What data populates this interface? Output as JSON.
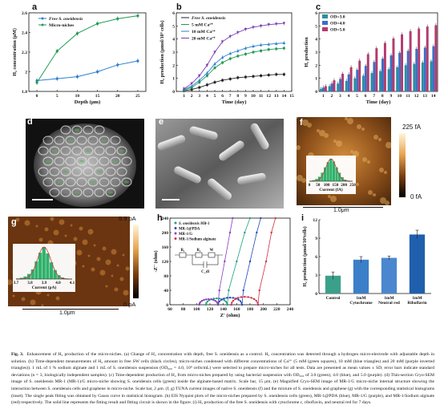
{
  "panel_letters": [
    "a",
    "b",
    "c",
    "d",
    "e",
    "f",
    "g",
    "h",
    "i"
  ],
  "panel_a": {
    "chart_data": {
      "type": "line",
      "xlabel": "Depth (μm)",
      "ylabel": "H₂ concentration (μM)",
      "xlim": [
        -2,
        27
      ],
      "ylim": [
        1.8,
        2.6
      ],
      "xticks": [
        0,
        5,
        10,
        15,
        20,
        25
      ],
      "yticks": [
        1.8,
        2.0,
        2.2,
        2.4,
        2.6
      ],
      "x": [
        0,
        5,
        10,
        15,
        20,
        25
      ],
      "series": [
        {
          "name": "Free S. oneidensis",
          "color": "#2b7fd1",
          "values": [
            1.91,
            1.93,
            1.95,
            2.0,
            2.07,
            2.11
          ]
        },
        {
          "name": "Micro-niches",
          "color": "#1f9a55",
          "values": [
            1.89,
            2.21,
            2.39,
            2.49,
            2.54,
            2.57
          ]
        }
      ]
    }
  },
  "panel_b": {
    "chart_data": {
      "type": "line",
      "xlabel": "Time (day)",
      "ylabel": "H₂ production (μmol/10⁹ cells)",
      "xlim": [
        0,
        15
      ],
      "ylim": [
        0,
        6
      ],
      "xticks": [
        1,
        2,
        3,
        4,
        5,
        6,
        7,
        8,
        9,
        10,
        11,
        12,
        13,
        14,
        15
      ],
      "yticks": [
        0,
        1,
        2,
        3,
        4,
        5,
        6
      ],
      "x": [
        1,
        2,
        3,
        4,
        5,
        6,
        7,
        8,
        9,
        10,
        11,
        12,
        13,
        14
      ],
      "series": [
        {
          "name": "Free S. oneidensis",
          "color": "#222222",
          "marker": "square",
          "values": [
            0.05,
            0.15,
            0.3,
            0.5,
            0.7,
            0.85,
            0.95,
            1.05,
            1.1,
            1.15,
            1.2,
            1.25,
            1.3,
            1.3
          ]
        },
        {
          "name": "5 mM Ca²⁺",
          "color": "#1f9a55",
          "marker": "square",
          "values": [
            0.1,
            0.3,
            0.7,
            1.2,
            1.8,
            2.2,
            2.5,
            2.7,
            2.85,
            3.0,
            3.1,
            3.2,
            3.25,
            3.3
          ]
        },
        {
          "name": "10 mM Ca²⁺",
          "color": "#2b7fd1",
          "marker": "triangle",
          "values": [
            0.15,
            0.4,
            0.85,
            1.4,
            2.1,
            2.6,
            2.9,
            3.1,
            3.3,
            3.45,
            3.55,
            3.6,
            3.65,
            3.7
          ]
        },
        {
          "name": "20 mM Ca²⁺",
          "color": "#7a3fb0",
          "marker": "triangle-down",
          "values": [
            0.2,
            0.6,
            1.2,
            2.0,
            3.0,
            3.8,
            4.2,
            4.5,
            4.75,
            4.9,
            5.0,
            5.1,
            5.15,
            5.2
          ]
        }
      ]
    }
  },
  "panel_c": {
    "chart_data": {
      "type": "bar",
      "xlabel": "Time (day)",
      "ylabel": "H₂ production",
      "categories": [
        "1",
        "2",
        "3",
        "4",
        "5",
        "6",
        "7",
        "8",
        "9",
        "10",
        "11",
        "12",
        "13",
        "14"
      ],
      "ylim": [
        0,
        6
      ],
      "yticks": [
        0,
        1,
        2,
        3,
        4,
        5,
        6
      ],
      "series": [
        {
          "name": "OD=3.0",
          "color": "#2a8fa0",
          "values": [
            0.2,
            0.4,
            0.6,
            0.8,
            1.0,
            1.2,
            1.4,
            1.55,
            1.7,
            1.85,
            2.0,
            2.1,
            2.2,
            2.3
          ]
        },
        {
          "name": "OD=4.0",
          "color": "#3b6fc6",
          "values": [
            0.3,
            0.6,
            0.95,
            1.3,
            1.65,
            1.95,
            2.25,
            2.5,
            2.75,
            2.95,
            3.1,
            3.25,
            3.35,
            3.45
          ]
        },
        {
          "name": "OD=5.0",
          "color": "#b33a6e",
          "values": [
            0.4,
            0.85,
            1.35,
            1.85,
            2.35,
            2.85,
            3.3,
            3.7,
            4.05,
            4.35,
            4.6,
            4.8,
            4.95,
            5.05
          ]
        }
      ]
    }
  },
  "panel_d": {
    "scale_label": ""
  },
  "panel_e": {
    "scale_label": ""
  },
  "panel_f": {
    "colorbar_top": "225 fA",
    "colorbar_bottom": "0 fA",
    "scale": "1.0μm",
    "hist_xlabel": "Current (fA)",
    "hist_ticks": [
      "0",
      "50",
      "100",
      "150",
      "200",
      "250"
    ]
  },
  "panel_g": {
    "colorbar_top": "9.9 pA",
    "colorbar_bottom": "0 pA",
    "scale": "1.0μm",
    "hist_xlabel": "Current (pA)",
    "hist_ticks": [
      "3.7",
      "3.8",
      "3.9",
      "4.0",
      "4.1"
    ]
  },
  "panel_h": {
    "chart_data": {
      "type": "scatter",
      "xlabel": "Z' (ohm)",
      "ylabel": "-Z'' (ohm)",
      "xlim": [
        60,
        240
      ],
      "ylim": [
        0,
        240
      ],
      "xticks": [
        60,
        80,
        100,
        120,
        140,
        160,
        180,
        200,
        220,
        240
      ],
      "yticks": [
        0,
        40,
        80,
        120,
        160,
        200,
        240
      ],
      "series": [
        {
          "name": "S. oneidensis MR-1",
          "color": "#1fa37a"
        },
        {
          "name": "MR-1@PDA",
          "color": "#2a49b8"
        },
        {
          "name": "MR-1/G",
          "color": "#8c3fc0"
        },
        {
          "name": "MR-1/Sodium alginate",
          "color": "#d2334a"
        }
      ],
      "circuit_labels": [
        "R₁",
        "R₂",
        "W",
        "C_dl"
      ]
    }
  },
  "panel_i": {
    "chart_data": {
      "type": "bar",
      "ylabel": "H₂ production (μmol/10⁹cells)",
      "ylim": [
        0,
        12
      ],
      "yticks": [
        0,
        3,
        6,
        9,
        12
      ],
      "categories": [
        "Control",
        "1mM Cytochrome",
        "1mM Neutral red",
        "1mM Riboflavin"
      ],
      "values": [
        2.9,
        5.5,
        5.8,
        9.6
      ],
      "errors": [
        0.6,
        0.5,
        0.3,
        0.7
      ],
      "colors": [
        "#3aa08a",
        "#3b7fc8",
        "#4a87cf",
        "#1f5fae"
      ]
    }
  },
  "caption": {
    "label": "Fig. 3.",
    "text": "Enhancement of H₂ production of the micro-niches. (a) Change of H₂ concentration with depth, free S. oneidensis as a control. H₂ concentration was detected through a hydrogen micro-electrode with adjustable depth in solution. (b) Time-dependent measurements of H₂ amount in free SW cells (black circles), micro-niches condensed with different concentrations of Ca²⁺ (5 mM (green squares), 10 mM (blue triangles) and 20 mM (purple inverted triangles)). 1 mL of 1 % sodium alginate and 1 mL of S. oneidensis suspension (OD₆₀₀ = 4.0, 10⁹ cells/mL) were selected to prepare micro-niches for all tests. Data are presented as mean values ± SD, error bars indicate standard deviations (n = 3, biologically independent samples). (c) Time-dependent production of H₂ from micro-niches prepared by using bacterial suspension with OD₆₀₀ of 3.0 (green), 4.0 (blue), and 5.0 (purple). (d) Thin-section Cryo-SEM image of S. oneidensis MR-1 (MR-1)/G micro-niche showing S. oneidensis cells (green) inside the alginate-based matrix. Scale bar, 15 μm. (e) Magnified Cryo-SEM image of MR-1/G micro-niche internal structure showing the interaction between S. oneidensis cells and graphene in micro-niche. Scale bar, 2 μm. (f, g) TUNA current images of native S. oneidensis (f) and the mixture of S. oneidensis and graphene (g) with the corresponding statistical histograms (inset). The single peak fitting was obtained by Gauss curve in statistical histogram. (h) EIS Nyquist plots of the micro-niches prepared by S. oneidensis cells (green), MR-1@PDA (blue), MR-1/G (purple), and MR-1/Sodium alginate (red) respectively. The solid line represents the fitting result and fitting circuit is shown in the figure. (i) H₂ production of the free S. oneidensis with cytochrome c, riboflavin, and neutral red for 7 days."
  }
}
